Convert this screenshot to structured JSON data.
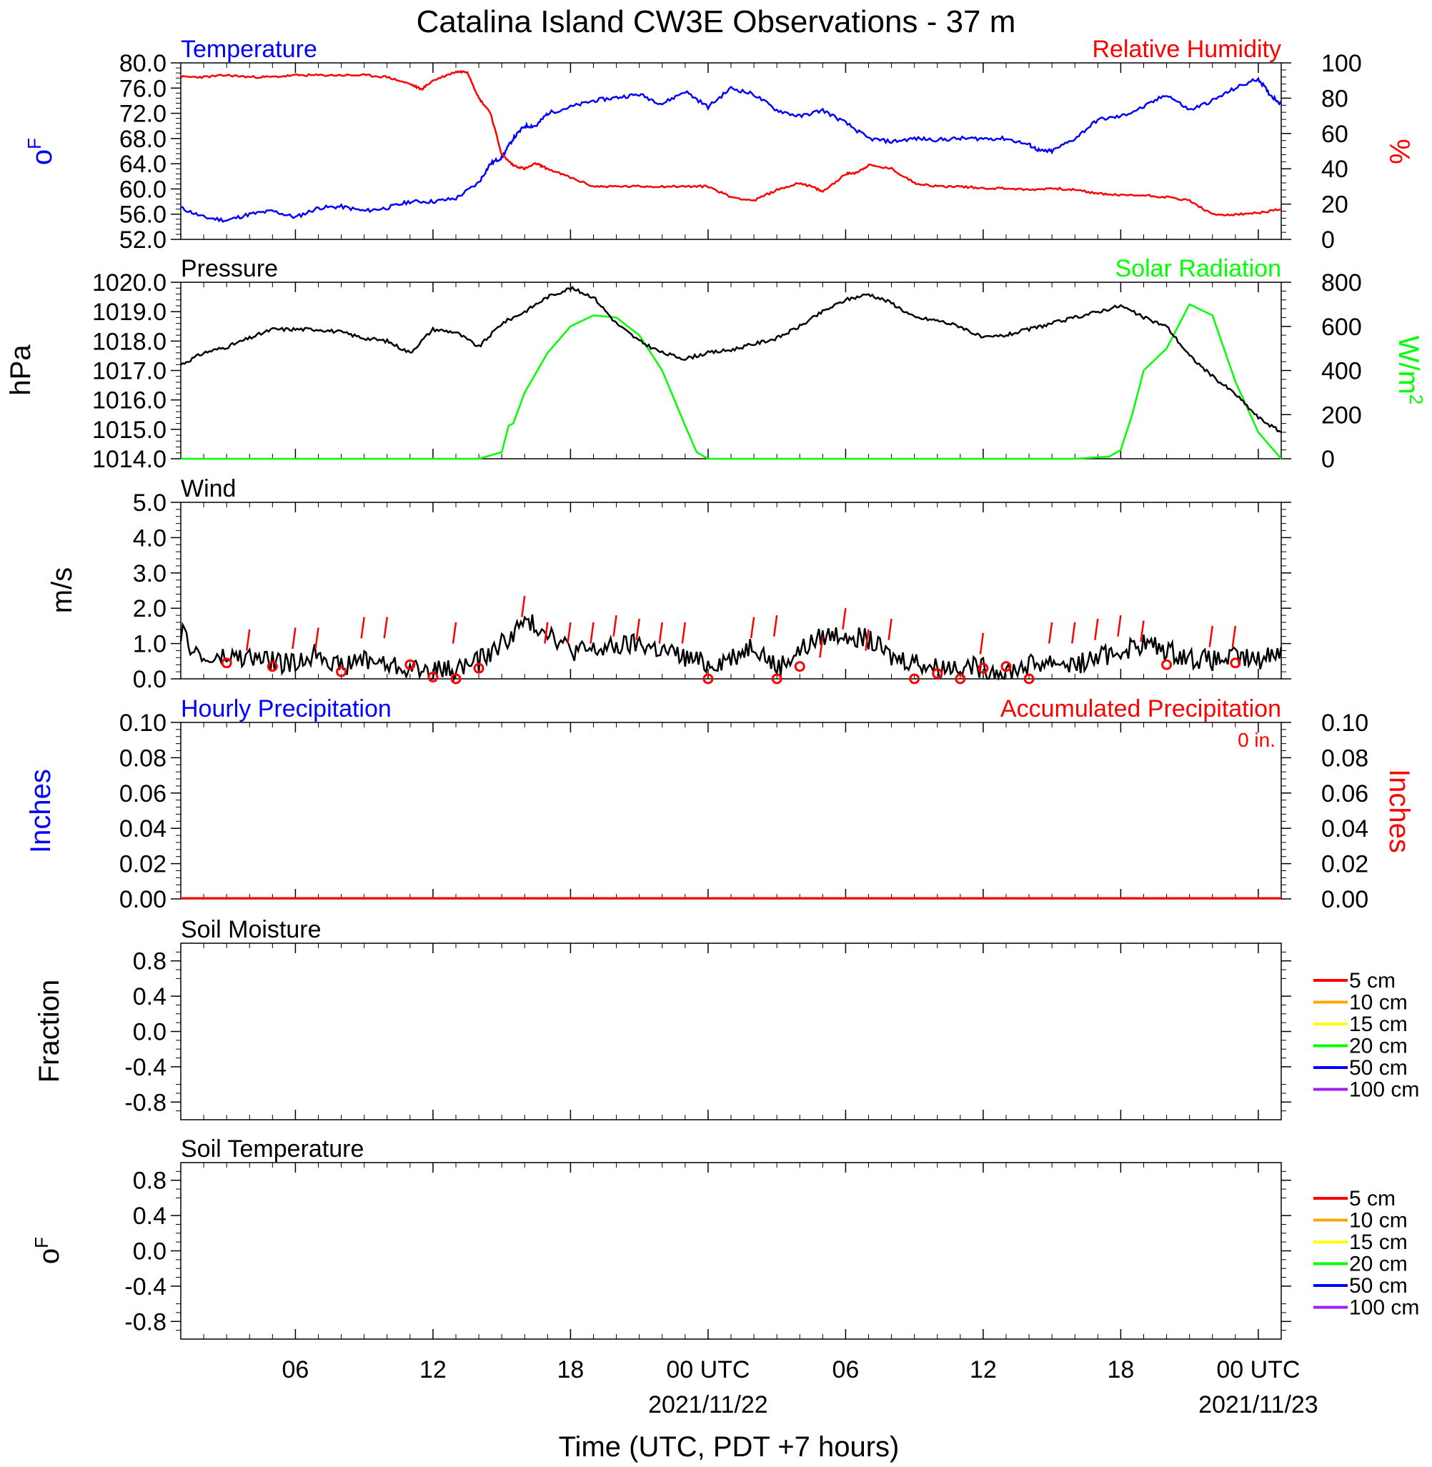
{
  "title": "Catalina Island CW3E Observations - 37 m",
  "xaxis": {
    "label": "Time (UTC, PDT +7 hours)",
    "ticks": [
      "06",
      "12",
      "18",
      "00 UTC",
      "06",
      "12",
      "18",
      "00 UTC"
    ],
    "tick_hours": [
      6,
      12,
      18,
      24,
      30,
      36,
      42,
      48
    ],
    "dates": [
      "2021/11/22",
      "2021/11/23"
    ],
    "range_hours": [
      1,
      49
    ]
  },
  "colors": {
    "temperature": "#0000ff",
    "humidity": "#ff0000",
    "pressure": "#000000",
    "solar": "#00ff00",
    "wind": "#000000",
    "gust": "#ff0000",
    "hourly_precip": "#0000ff",
    "accum_precip": "#ff0000",
    "soil_5cm": "#ff0000",
    "soil_10cm": "#ffa500",
    "soil_15cm": "#ffff00",
    "soil_20cm": "#00ff00",
    "soil_50cm": "#0000ff",
    "soil_100cm": "#a020f0"
  },
  "panels": {
    "temp_rh": {
      "left_title": "Temperature",
      "right_title": "Relative Humidity",
      "left_unit": "oF",
      "right_unit": "%",
      "left_ticks": [
        "80.0",
        "76.0",
        "72.0",
        "68.0",
        "64.0",
        "60.0",
        "56.0",
        "52.0"
      ],
      "right_ticks": [
        "100",
        "80",
        "60",
        "40",
        "20",
        "0"
      ]
    },
    "pressure_solar": {
      "left_title": "Pressure",
      "right_title": "Solar Radiation",
      "left_unit": "hPa",
      "right_unit": "W/m2",
      "left_ticks": [
        "1020.0",
        "1019.0",
        "1018.0",
        "1017.0",
        "1016.0",
        "1015.0",
        "1014.0"
      ],
      "right_ticks": [
        "800",
        "600",
        "400",
        "200",
        "0"
      ]
    },
    "wind": {
      "left_title": "Wind",
      "left_unit": "m/s",
      "left_ticks": [
        "5.0",
        "4.0",
        "3.0",
        "2.0",
        "1.0",
        "0.0"
      ]
    },
    "precip": {
      "left_title": "Hourly Precipitation",
      "right_title": "Accumulated Precipitation",
      "total": "0 in.",
      "left_unit": "Inches",
      "right_unit": "Inches",
      "left_ticks": [
        "0.10",
        "0.08",
        "0.06",
        "0.04",
        "0.02",
        "0.00"
      ],
      "right_ticks": [
        "0.10",
        "0.08",
        "0.06",
        "0.04",
        "0.02",
        "0.00"
      ]
    },
    "soil_moisture": {
      "left_title": "Soil Moisture",
      "left_unit": "Fraction",
      "left_ticks": [
        "0.8",
        "0.4",
        "0.0",
        "-0.4",
        "-0.8"
      ],
      "legend": [
        "5 cm",
        "10 cm",
        "15 cm",
        "20 cm",
        "50 cm",
        "100 cm"
      ]
    },
    "soil_temp": {
      "left_title": "Soil Temperature",
      "left_unit": "oF",
      "left_ticks": [
        "0.8",
        "0.4",
        "0.0",
        "-0.4",
        "-0.8"
      ],
      "legend": [
        "5 cm",
        "10 cm",
        "15 cm",
        "20 cm",
        "50 cm",
        "100 cm"
      ]
    }
  },
  "chart_data": [
    {
      "type": "line",
      "title": "Temperature",
      "ylabel": "oF",
      "ylim": [
        52,
        80
      ],
      "x": [
        1,
        2,
        3,
        4,
        5,
        6,
        7,
        8,
        9,
        10,
        11,
        12,
        13,
        14,
        14.5,
        15,
        15.5,
        16,
        16.5,
        17,
        18,
        19,
        20,
        21,
        22,
        23,
        24,
        25,
        26,
        27,
        28,
        29,
        30,
        31,
        32,
        33,
        34,
        35,
        36,
        37,
        38,
        38.5,
        39,
        40,
        41,
        42,
        43,
        44,
        45,
        46,
        47,
        48,
        48.5,
        49
      ],
      "values": [
        57,
        55.5,
        55,
        56,
        56.5,
        55.5,
        57,
        57.2,
        56.5,
        57,
        58,
        58,
        58.5,
        61,
        64,
        65,
        68,
        70,
        70,
        72,
        73,
        74,
        74.5,
        75,
        73.5,
        75.5,
        73,
        76,
        75,
        72.5,
        71.5,
        72.5,
        70.5,
        68,
        67.5,
        68,
        67.8,
        68,
        68,
        68,
        67,
        66,
        66,
        68,
        71,
        71.5,
        73,
        75,
        72.5,
        74,
        76,
        77.5,
        75,
        73.5
      ],
      "series_name": "Temperature"
    },
    {
      "type": "line",
      "title": "Relative Humidity",
      "ylabel": "%",
      "ylim": [
        0,
        100
      ],
      "x": [
        1,
        2,
        3,
        4,
        5,
        6,
        7,
        8,
        9,
        10,
        11,
        11.5,
        12,
        13,
        13.5,
        14,
        14.5,
        15,
        15.5,
        16,
        16.5,
        17,
        18,
        19,
        20,
        21,
        22,
        23,
        24,
        25,
        26,
        27,
        28,
        28.5,
        29,
        30,
        30.5,
        31,
        32,
        33,
        34,
        35,
        36,
        37,
        38,
        39,
        40,
        41,
        42,
        43,
        44,
        45,
        46,
        47,
        48,
        49
      ],
      "values": [
        92,
        92,
        93,
        92,
        92,
        93,
        93,
        93,
        93,
        92,
        88,
        85,
        90,
        95,
        95,
        80,
        72,
        48,
        42,
        40,
        43,
        40,
        35,
        30,
        30,
        30,
        30,
        30,
        30,
        24,
        22,
        28,
        32,
        30,
        27,
        37,
        38,
        42,
        40,
        32,
        30,
        30,
        29,
        29,
        28,
        29,
        28,
        26,
        25,
        25,
        24,
        22,
        14,
        14,
        15,
        17
      ],
      "series_name": "Relative Humidity"
    },
    {
      "type": "line",
      "title": "Pressure",
      "ylabel": "hPa",
      "ylim": [
        1014,
        1020
      ],
      "x": [
        1,
        2,
        3,
        4,
        5,
        6,
        7,
        8,
        9,
        10,
        11,
        12,
        13,
        14,
        15,
        16,
        17,
        18,
        19,
        20,
        21,
        22,
        23,
        24,
        25,
        26,
        27,
        28,
        29,
        30,
        31,
        32,
        33,
        34,
        35,
        36,
        37,
        38,
        39,
        40,
        41,
        42,
        43,
        44,
        45,
        46,
        47,
        48,
        49
      ],
      "values": [
        1017.2,
        1017.6,
        1017.8,
        1018.1,
        1018.4,
        1018.4,
        1018.4,
        1018.3,
        1018.1,
        1018.0,
        1017.6,
        1018.4,
        1018.3,
        1017.8,
        1018.6,
        1019.0,
        1019.5,
        1019.8,
        1019.5,
        1018.6,
        1018.0,
        1017.6,
        1017.4,
        1017.6,
        1017.7,
        1017.9,
        1018.1,
        1018.5,
        1019.0,
        1019.4,
        1019.6,
        1019.3,
        1018.8,
        1018.7,
        1018.5,
        1018.1,
        1018.2,
        1018.4,
        1018.6,
        1018.8,
        1019.0,
        1019.2,
        1018.8,
        1018.5,
        1017.5,
        1016.8,
        1016.2,
        1015.4,
        1014.9
      ],
      "series_name": "Pressure"
    },
    {
      "type": "line",
      "title": "Solar Radiation",
      "ylabel": "W/m2",
      "ylim": [
        0,
        800
      ],
      "x": [
        1,
        14,
        15,
        15.3,
        15.5,
        16,
        17,
        18,
        19,
        20,
        21,
        22,
        23,
        23.5,
        24,
        25,
        30,
        35,
        40,
        41.5,
        42,
        42.5,
        43,
        44,
        45,
        46,
        47,
        48,
        49
      ],
      "values": [
        0,
        0,
        30,
        150,
        160,
        300,
        480,
        600,
        650,
        640,
        560,
        400,
        150,
        30,
        0,
        0,
        0,
        0,
        0,
        10,
        40,
        200,
        400,
        500,
        700,
        650,
        350,
        120,
        0
      ],
      "series_name": "Solar Radiation"
    },
    {
      "type": "line",
      "title": "Wind",
      "ylabel": "m/s",
      "ylim": [
        0,
        5
      ],
      "x": [
        1,
        2,
        3,
        4,
        5,
        6,
        7,
        8,
        9,
        10,
        11,
        12,
        13,
        14,
        15,
        16,
        17,
        18,
        19,
        20,
        21,
        22,
        23,
        24,
        25,
        26,
        27,
        28,
        29,
        30,
        31,
        32,
        33,
        34,
        35,
        36,
        37,
        38,
        39,
        40,
        41,
        42,
        43,
        44,
        45,
        46,
        47,
        48,
        49
      ],
      "values": [
        1.3,
        0.5,
        0.6,
        0.6,
        0.5,
        0.4,
        0.8,
        0.3,
        0.6,
        0.4,
        0.3,
        0.2,
        0.3,
        0.5,
        1.0,
        1.6,
        1.4,
        0.8,
        0.8,
        0.9,
        1.0,
        0.8,
        0.6,
        0.4,
        0.6,
        1.0,
        0.3,
        0.8,
        1.2,
        1.3,
        1.1,
        0.6,
        0.5,
        0.3,
        0.4,
        0.3,
        0.2,
        0.4,
        0.5,
        0.4,
        0.6,
        0.8,
        1.0,
        0.8,
        0.6,
        0.5,
        0.6,
        0.5,
        0.9
      ],
      "series_name": "Wind"
    },
    {
      "type": "line",
      "title": "Hourly Precipitation",
      "ylabel": "Inches",
      "ylim": [
        0,
        0.1
      ],
      "x": [
        1,
        49
      ],
      "values": [
        0,
        0
      ]
    },
    {
      "type": "line",
      "title": "Soil Moisture",
      "ylabel": "Fraction",
      "ylim": [
        -1,
        1
      ],
      "legend": [
        "5 cm",
        "10 cm",
        "15 cm",
        "20 cm",
        "50 cm",
        "100 cm"
      ],
      "series": []
    },
    {
      "type": "line",
      "title": "Soil Temperature",
      "ylabel": "oF",
      "ylim": [
        -1,
        1
      ],
      "legend": [
        "5 cm",
        "10 cm",
        "15 cm",
        "20 cm",
        "50 cm",
        "100 cm"
      ],
      "series": []
    }
  ],
  "wind_markers": {
    "x": [
      3,
      5,
      8,
      11,
      12,
      13,
      14,
      24,
      27,
      28,
      33,
      34,
      35,
      36,
      37,
      38,
      44,
      47
    ],
    "values": [
      0.45,
      0.35,
      0.2,
      0.4,
      0.05,
      0.0,
      0.3,
      0.0,
      0.0,
      0.35,
      0.0,
      0.15,
      0.0,
      0.3,
      0.35,
      0.0,
      0.4,
      0.45
    ]
  },
  "gust_ticks": {
    "x": [
      4,
      6,
      7,
      9,
      10,
      13,
      16,
      17,
      18,
      19,
      20,
      21,
      22,
      23,
      26,
      27,
      29,
      30,
      31,
      32,
      36,
      39,
      40,
      41,
      42,
      43,
      46,
      47
    ],
    "values": [
      1.4,
      1.45,
      1.45,
      1.75,
      1.75,
      1.6,
      2.35,
      1.6,
      1.6,
      1.6,
      1.8,
      1.7,
      1.6,
      1.6,
      1.75,
      1.8,
      1.2,
      2.0,
      1.4,
      1.7,
      1.3,
      1.6,
      1.6,
      1.7,
      1.8,
      1.65,
      1.5,
      1.5
    ]
  }
}
